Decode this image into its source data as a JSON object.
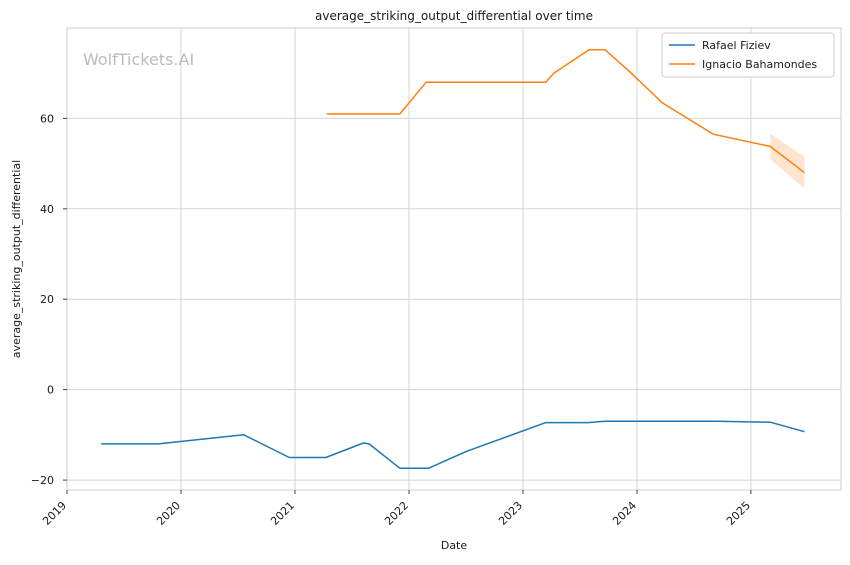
{
  "watermark": "WolfTickets.AI",
  "chart_data": {
    "type": "line",
    "title": "average_striking_output_differential over time",
    "xlabel": "Date",
    "ylabel": "average_striking_output_differential",
    "x_ticks": [
      2019,
      2020,
      2021,
      2022,
      2023,
      2024,
      2025
    ],
    "y_ticks": [
      -20,
      0,
      20,
      40,
      60
    ],
    "xlim": [
      2019.0,
      2025.79
    ],
    "ylim": [
      -22.2,
      80.0
    ],
    "grid": true,
    "legend_position": "top-right",
    "series": [
      {
        "name": "Rafael Fiziev",
        "color": "#1f77b4",
        "points": [
          [
            2019.3,
            -12.0
          ],
          [
            2019.8,
            -12.0
          ],
          [
            2020.55,
            -10.0
          ],
          [
            2020.95,
            -15.0
          ],
          [
            2021.27,
            -15.0
          ],
          [
            2021.6,
            -11.8
          ],
          [
            2021.65,
            -12.0
          ],
          [
            2021.92,
            -17.4
          ],
          [
            2022.17,
            -17.4
          ],
          [
            2022.5,
            -13.7
          ],
          [
            2023.2,
            -7.3
          ],
          [
            2023.57,
            -7.3
          ],
          [
            2023.72,
            -7.0
          ],
          [
            2024.7,
            -7.0
          ],
          [
            2025.17,
            -7.2
          ],
          [
            2025.47,
            -9.3
          ]
        ]
      },
      {
        "name": "Ignacio Bahamondes",
        "color": "#ff7f0e",
        "points": [
          [
            2021.28,
            61.0
          ],
          [
            2021.92,
            61.0
          ],
          [
            2022.15,
            68.0
          ],
          [
            2023.2,
            68.0
          ],
          [
            2023.27,
            70.0
          ],
          [
            2023.58,
            75.2
          ],
          [
            2023.72,
            75.2
          ],
          [
            2023.95,
            70.0
          ],
          [
            2024.22,
            63.5
          ],
          [
            2024.67,
            56.5
          ],
          [
            2025.17,
            53.8
          ],
          [
            2025.47,
            48.0
          ]
        ],
        "band": [
          [
            2025.17,
            51.0,
            56.6
          ],
          [
            2025.47,
            44.5,
            51.5
          ]
        ]
      }
    ]
  }
}
